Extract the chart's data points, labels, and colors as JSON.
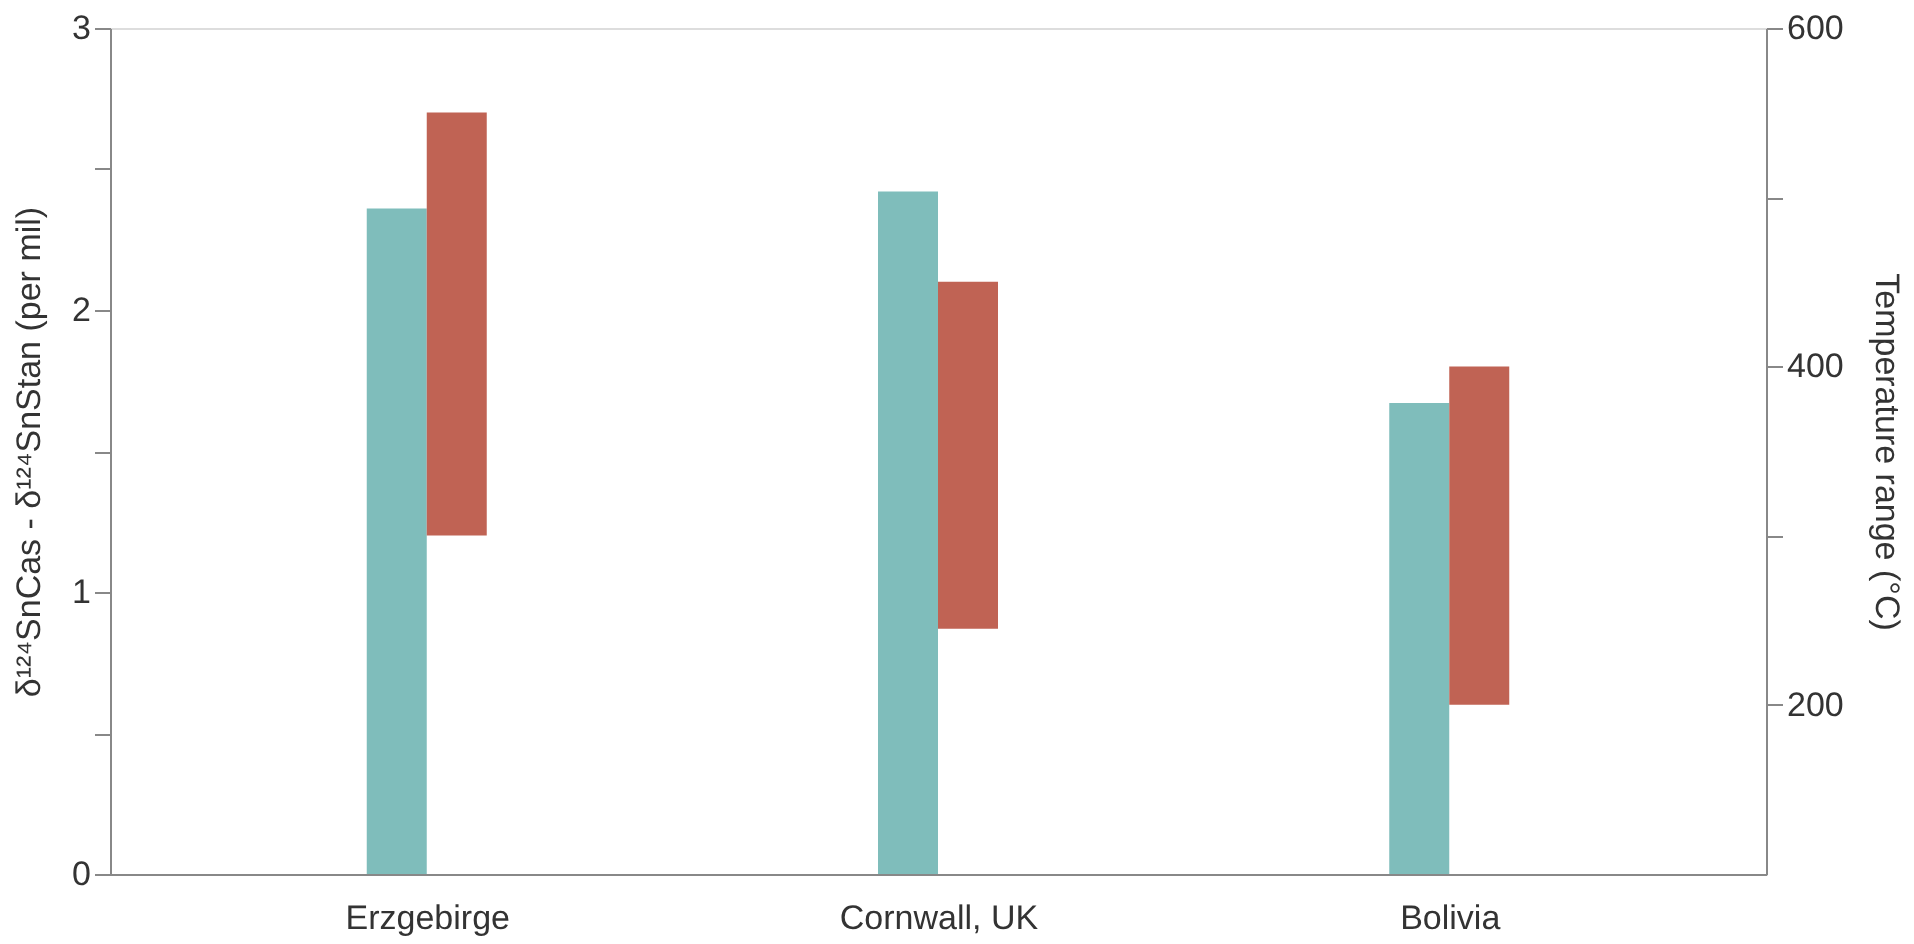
{
  "chart_data": {
    "type": "bar",
    "categories": [
      "Erzgebirge",
      "Cornwall, UK",
      "Bolivia"
    ],
    "ylabel": "δ¹²⁴SnCas - δ¹²⁴SnStan (per mil)",
    "y2label": "Temperature range (°C)",
    "series": [
      {
        "color": "#7fbdbb",
        "values": [
          2.36,
          2.42,
          1.67
        ]
      },
      {
        "color": "#c06354",
        "axis": "y2",
        "base": [
          300,
          245,
          200
        ],
        "values": [
          250,
          205,
          200
        ]
      }
    ],
    "ylim": [
      0,
      3
    ],
    "yticks": [
      0,
      {
        "value": 0.5,
        "label": null
      },
      1,
      {
        "value": 1.5,
        "label": null
      },
      2,
      {
        "value": 2.5,
        "label": null
      },
      3
    ],
    "y2lim": [
      100,
      600
    ],
    "y2ticks": [
      200,
      {
        "value": 300,
        "label": null
      },
      400,
      {
        "value": 500,
        "label": null
      },
      600
    ],
    "grid": false
  }
}
